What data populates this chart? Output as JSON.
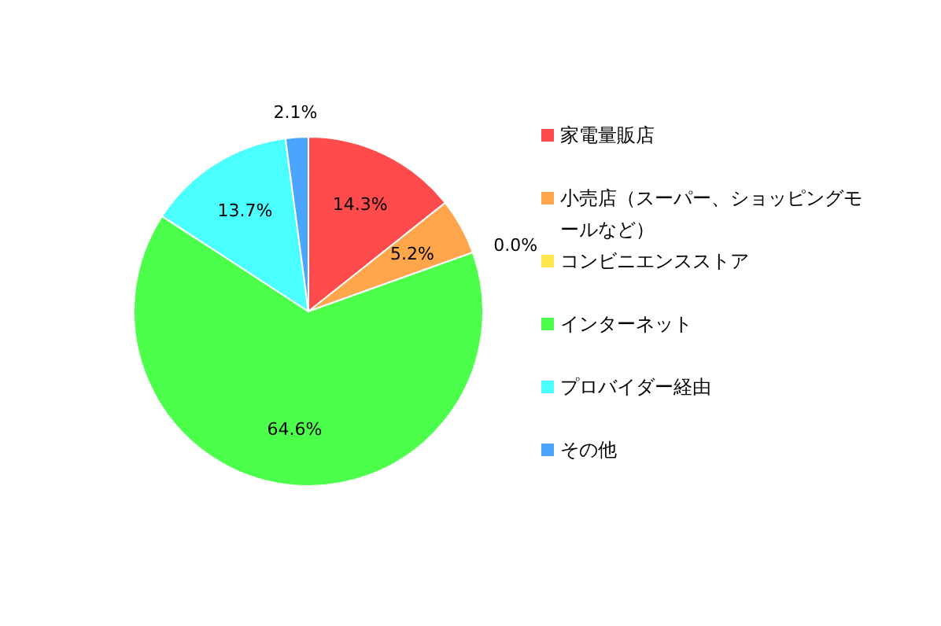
{
  "chart_data": {
    "type": "pie",
    "categories": [
      "家電量販店",
      "小売店（スーパー、ショッピングモールなど）",
      "コンビニエンスストア",
      "インターネット",
      "プロバイダー経由",
      "その他"
    ],
    "values": [
      14.3,
      5.2,
      0.0,
      64.6,
      13.7,
      2.1
    ],
    "value_labels": [
      "14.3%",
      "5.2%",
      "0.0%",
      "64.6%",
      "13.7%",
      "2.1%"
    ],
    "colors": [
      "#ff4b4b",
      "#ffa54b",
      "#ffe64b",
      "#4bff4b",
      "#4bffff",
      "#4ba5ff"
    ],
    "legend": "right"
  }
}
